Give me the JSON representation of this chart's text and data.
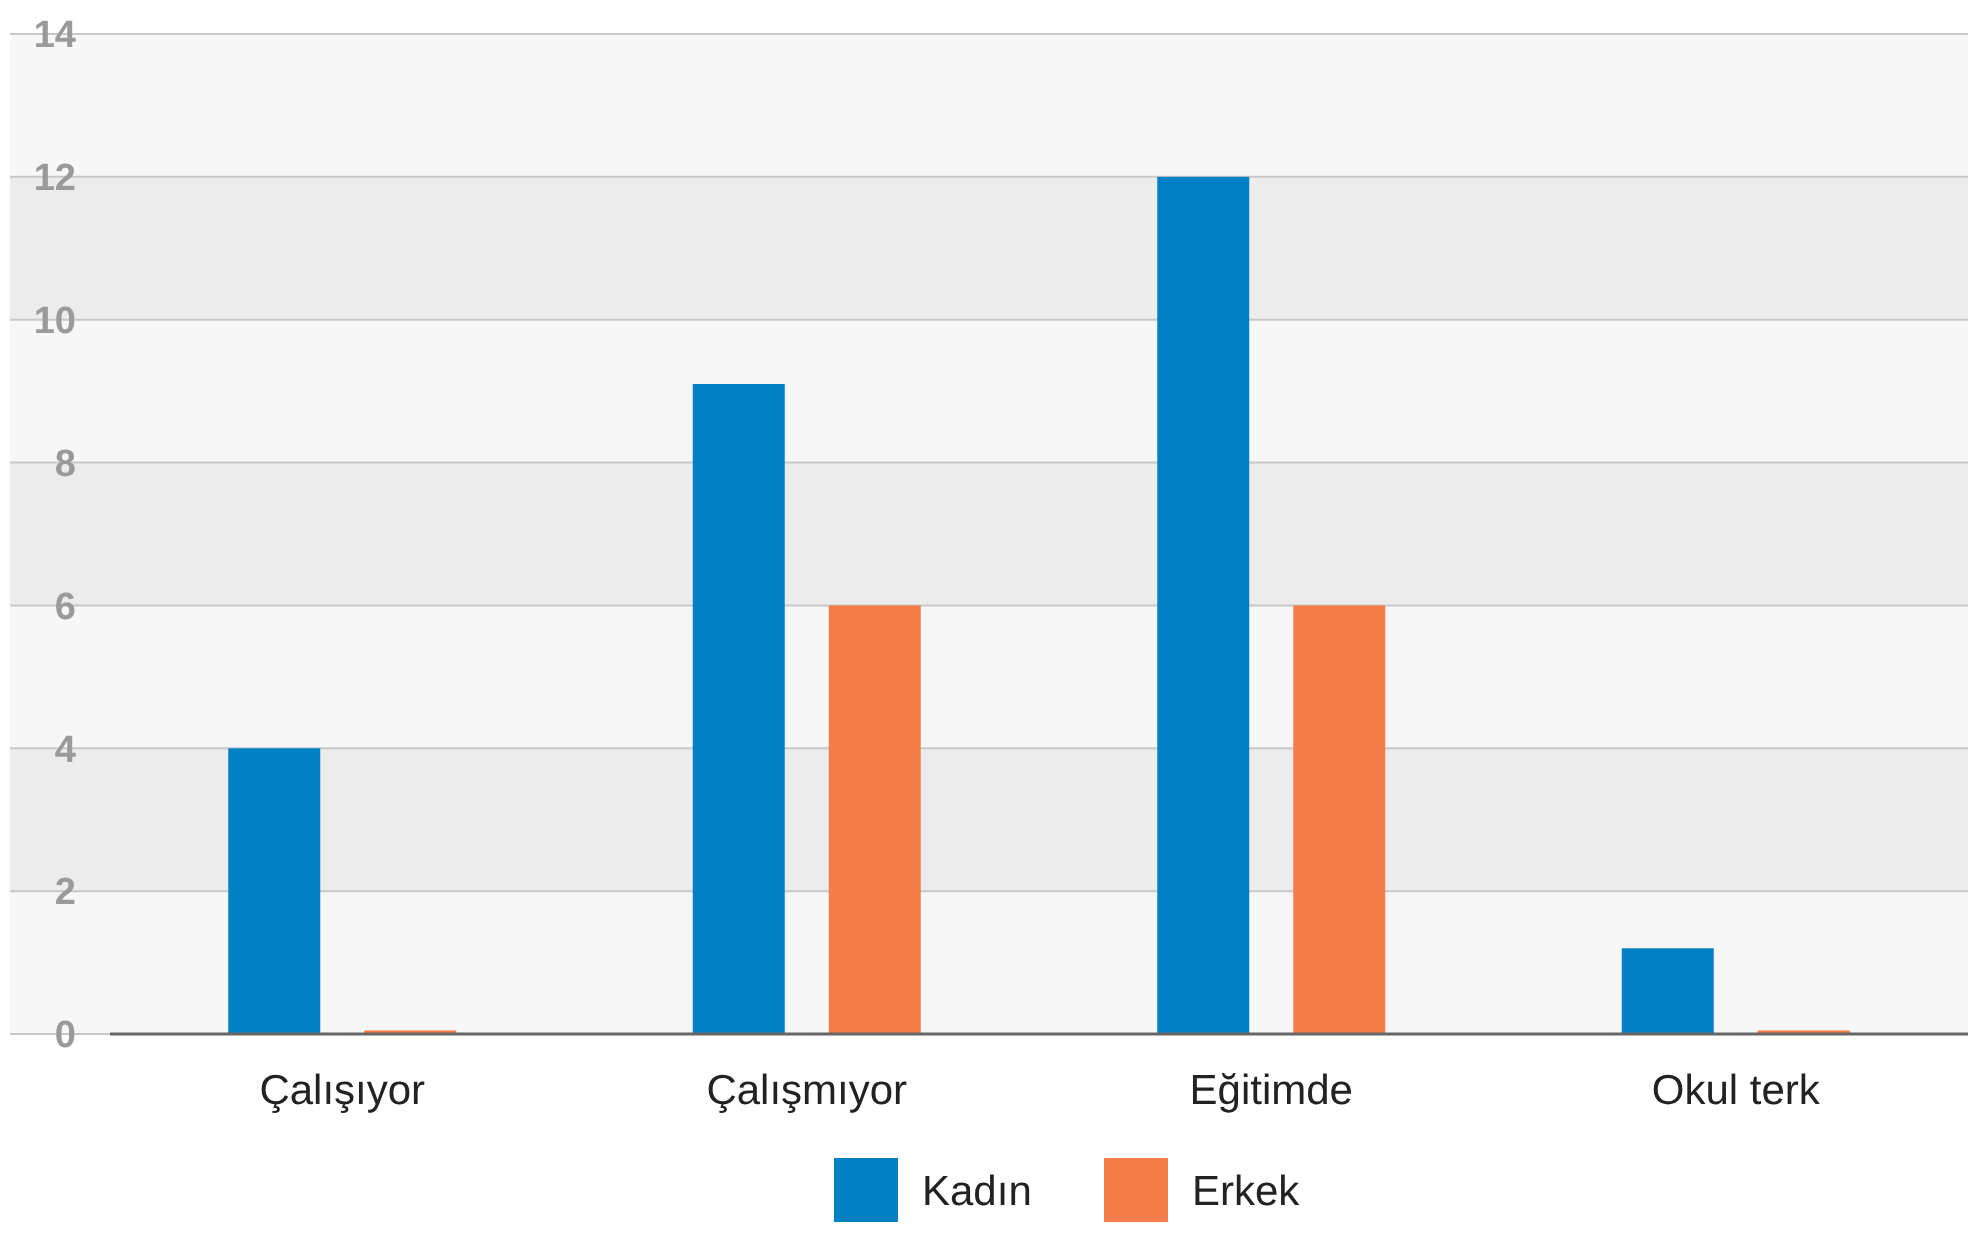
{
  "chart_data": {
    "type": "bar",
    "categories": [
      "Çalışıyor",
      "Çalışmıyor",
      "Eğitimde",
      "Okul terk"
    ],
    "series": [
      {
        "name": "Kadın",
        "color": "#0081c6",
        "values": [
          4,
          9.1,
          12,
          1.2
        ]
      },
      {
        "name": "Erkek",
        "color": "#f47d4a",
        "values": [
          0.05,
          6,
          6,
          0.05
        ]
      }
    ],
    "ylim": [
      0,
      14
    ],
    "yticks": [
      0,
      2,
      4,
      6,
      8,
      10,
      12,
      14
    ],
    "grid": "y",
    "legend": "bottom"
  }
}
